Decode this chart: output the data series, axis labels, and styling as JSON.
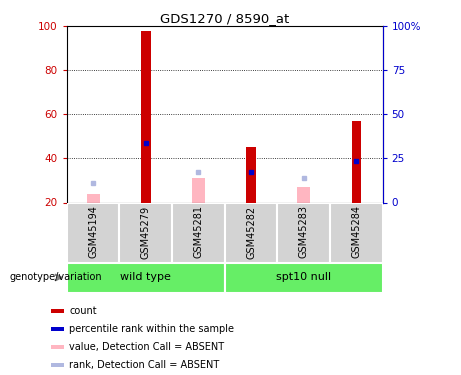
{
  "title": "GDS1270 / 8590_at",
  "samples": [
    "GSM45194",
    "GSM45279",
    "GSM45281",
    "GSM45282",
    "GSM45283",
    "GSM45284"
  ],
  "red_bars": [
    0,
    98,
    0,
    45,
    0,
    57
  ],
  "blue_markers": [
    0,
    47,
    0,
    34,
    0,
    39
  ],
  "pink_bars": [
    24,
    0,
    31,
    0,
    27,
    0
  ],
  "lavender_markers": [
    29,
    0,
    34,
    0,
    31,
    0
  ],
  "ylim": [
    20,
    100
  ],
  "y2lim": [
    0,
    100
  ],
  "yticks": [
    20,
    40,
    60,
    80,
    100
  ],
  "y2ticks": [
    0,
    25,
    50,
    75,
    100
  ],
  "y2ticklabels": [
    "0",
    "25",
    "50",
    "75",
    "100%"
  ],
  "grid_lines": [
    40,
    60,
    80
  ],
  "plot_bg": "#ffffff",
  "tick_bg": "#d3d3d3",
  "group_color": "#66ee66",
  "legend_items": [
    {
      "label": "count",
      "color": "#cc0000"
    },
    {
      "label": "percentile rank within the sample",
      "color": "#0000cc"
    },
    {
      "label": "value, Detection Call = ABSENT",
      "color": "#ffb6c1"
    },
    {
      "label": "rank, Detection Call = ABSENT",
      "color": "#b0b8e0"
    }
  ],
  "wt_label": "wild type",
  "spt_label": "spt10 null",
  "genotype_label": "genotype/variation",
  "wt_range": [
    0,
    2
  ],
  "spt_range": [
    3,
    5
  ]
}
